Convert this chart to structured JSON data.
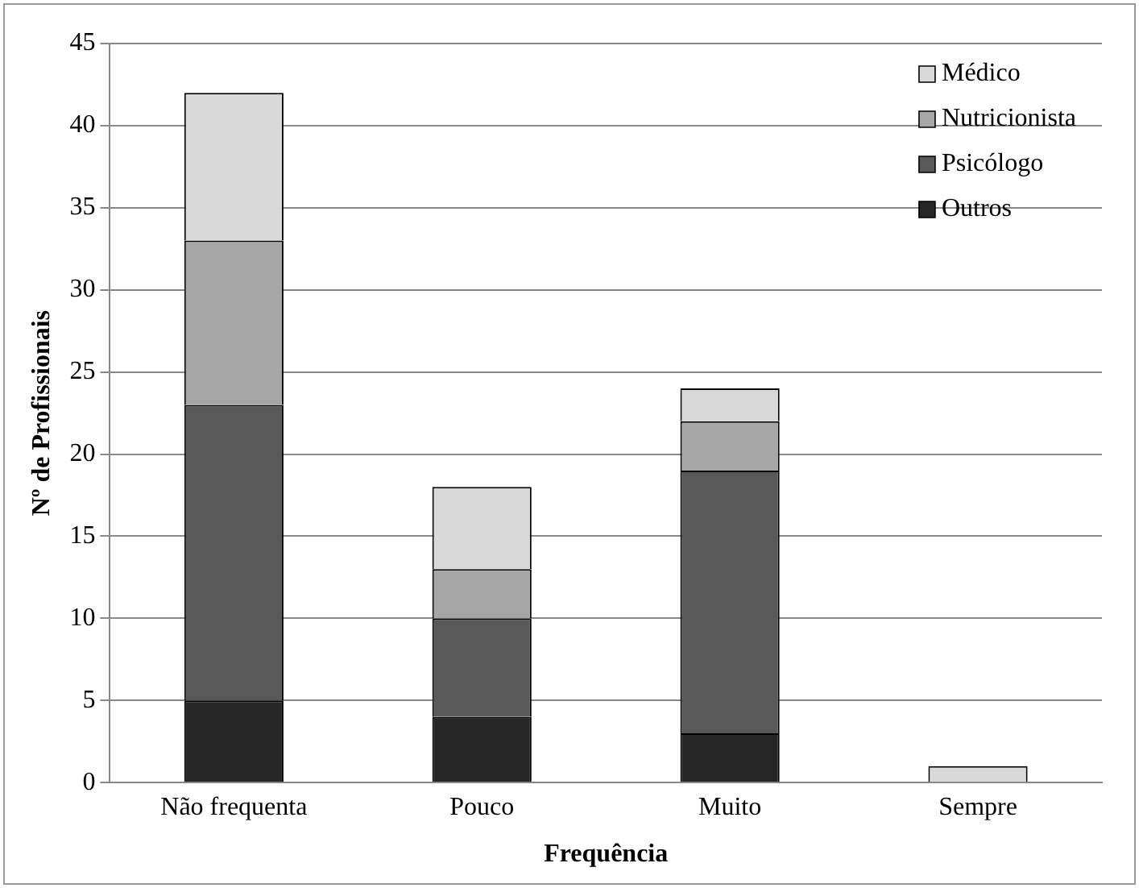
{
  "chart_data": {
    "type": "bar",
    "stacked": true,
    "xlabel": "Frequência",
    "ylabel": "Nº de Profissionais",
    "categories": [
      "Não frequenta",
      "Pouco",
      "Muito",
      "Sempre"
    ],
    "series": [
      {
        "name": "Outros",
        "color": "#262626",
        "values": [
          5,
          4,
          3,
          0
        ]
      },
      {
        "name": "Psicólogo",
        "color": "#595959",
        "values": [
          18,
          6,
          16,
          0
        ]
      },
      {
        "name": "Nutricionista",
        "color": "#a6a6a6",
        "values": [
          10,
          3,
          3,
          0
        ]
      },
      {
        "name": "Médico",
        "color": "#d9d9d9",
        "values": [
          9,
          5,
          2,
          1
        ]
      }
    ],
    "ylim": [
      0,
      45
    ],
    "yticks": [
      0,
      5,
      10,
      15,
      20,
      25,
      30,
      35,
      40,
      45
    ],
    "grid": "y",
    "legend": "top right"
  }
}
